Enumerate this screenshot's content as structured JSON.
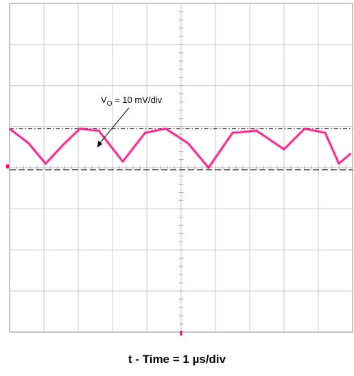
{
  "chart_data": {
    "type": "line",
    "title": "",
    "annotation": {
      "prefix": "V",
      "subscript": "O",
      "suffix": " = 10 mV/div"
    },
    "xlabel": "t - Time = 1 µs/div",
    "ylabel": "",
    "grid": true,
    "x_divisions": 10,
    "y_divisions": 8,
    "xlim": [
      0,
      10
    ],
    "ylim": [
      -4,
      4
    ],
    "reference_lines": [
      {
        "name": "upper",
        "y": 0.95,
        "style": "dash-dot"
      },
      {
        "name": "lower",
        "y": -0.05,
        "style": "dashed"
      }
    ],
    "series": [
      {
        "color": "#e0107a",
        "x": [
          0,
          0.55,
          1.05,
          1.55,
          2.05,
          2.6,
          3.3,
          3.95,
          4.55,
          5.2,
          5.8,
          6.5,
          7.2,
          8.0,
          8.6,
          9.2,
          9.6,
          9.95
        ],
        "y": [
          0.95,
          0.6,
          0.1,
          0.55,
          0.95,
          0.9,
          0.15,
          0.85,
          0.95,
          0.6,
          0.0,
          0.85,
          0.9,
          0.45,
          0.95,
          0.85,
          0.1,
          0.35
        ]
      }
    ],
    "colors": {
      "trace": "#e0107a",
      "grid": "#c8c8c8",
      "frame": "#888888"
    }
  }
}
